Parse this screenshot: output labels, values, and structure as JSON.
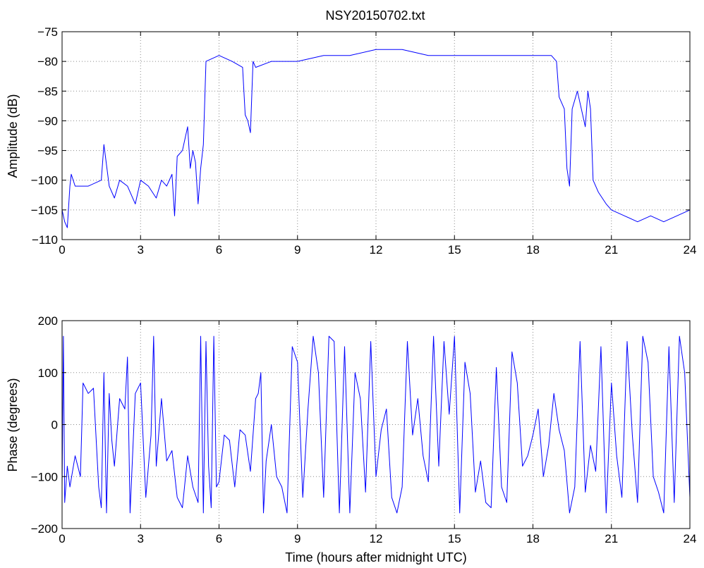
{
  "title": "NSY20150702.txt",
  "colors": {
    "series": "#0000ff",
    "grid": "#8a8a8a",
    "axis": "#000000"
  },
  "chart_data": [
    {
      "type": "line",
      "title": "NSY20150702.txt",
      "xlabel": "",
      "ylabel": "Amplitude (dB)",
      "xlim": [
        0,
        24
      ],
      "ylim": [
        -110,
        -75
      ],
      "xticks": [
        0,
        3,
        6,
        9,
        12,
        15,
        18,
        21,
        24
      ],
      "yticks": [
        -110,
        -105,
        -100,
        -95,
        -90,
        -85,
        -80,
        -75
      ],
      "xtick_labels": [
        "0",
        "3",
        "6",
        "9",
        "12",
        "15",
        "18",
        "21",
        "24"
      ],
      "ytick_labels": [
        "−110",
        "−105",
        "−100",
        "−95",
        "−90",
        "−85",
        "−80",
        "−75"
      ],
      "grid": true,
      "x": [
        0,
        0.1,
        0.2,
        0.3,
        0.35,
        0.5,
        1.0,
        1.5,
        1.6,
        1.8,
        2.0,
        2.2,
        2.5,
        2.8,
        3.0,
        3.3,
        3.6,
        3.8,
        4.0,
        4.2,
        4.3,
        4.4,
        4.6,
        4.8,
        4.9,
        5.0,
        5.1,
        5.2,
        5.3,
        5.4,
        5.5,
        6.0,
        6.5,
        6.9,
        7.0,
        7.1,
        7.2,
        7.3,
        7.4,
        8.0,
        9.0,
        10.0,
        11.0,
        12.0,
        13.0,
        14.0,
        15.0,
        16.0,
        17.0,
        18.0,
        18.7,
        18.9,
        19.0,
        19.2,
        19.3,
        19.4,
        19.5,
        19.7,
        19.9,
        20.0,
        20.1,
        20.2,
        20.3,
        20.5,
        20.8,
        21.0,
        21.5,
        22.0,
        22.5,
        23.0,
        23.5,
        24.0
      ],
      "y": [
        -105,
        -107,
        -108,
        -101,
        -99,
        -101,
        -101,
        -100,
        -94,
        -101,
        -103,
        -100,
        -101,
        -104,
        -100,
        -101,
        -103,
        -100,
        -101,
        -99,
        -106,
        -96,
        -95,
        -91,
        -98,
        -95,
        -97,
        -104,
        -98,
        -94,
        -80,
        -79,
        -80,
        -81,
        -89,
        -90,
        -92,
        -80,
        -81,
        -80,
        -80,
        -79,
        -79,
        -78,
        -78,
        -79,
        -79,
        -79,
        -79,
        -79,
        -79,
        -80,
        -86,
        -88,
        -98,
        -101,
        -88,
        -85,
        -89,
        -91,
        -85,
        -88,
        -100,
        -102,
        -104,
        -105,
        -106,
        -107,
        -106,
        -107,
        -106,
        -105
      ]
    },
    {
      "type": "line",
      "title": "",
      "xlabel": "Time (hours after midnight UTC)",
      "ylabel": "Phase (degrees)",
      "xlim": [
        0,
        24
      ],
      "ylim": [
        -200,
        200
      ],
      "xticks": [
        0,
        3,
        6,
        9,
        12,
        15,
        18,
        21,
        24
      ],
      "yticks": [
        -200,
        -100,
        0,
        100,
        200
      ],
      "xtick_labels": [
        "0",
        "3",
        "6",
        "9",
        "12",
        "15",
        "18",
        "21",
        "24"
      ],
      "ytick_labels": [
        "−200",
        "−100",
        "0",
        "100",
        "200"
      ],
      "grid": true,
      "x": [
        0,
        0.05,
        0.1,
        0.2,
        0.3,
        0.5,
        0.7,
        0.8,
        1.0,
        1.2,
        1.4,
        1.5,
        1.6,
        1.7,
        1.8,
        1.9,
        2.0,
        2.2,
        2.4,
        2.5,
        2.6,
        2.8,
        3.0,
        3.2,
        3.4,
        3.5,
        3.6,
        3.8,
        4.0,
        4.2,
        4.4,
        4.6,
        4.8,
        5.0,
        5.2,
        5.3,
        5.4,
        5.5,
        5.6,
        5.7,
        5.8,
        5.9,
        6.0,
        6.2,
        6.4,
        6.6,
        6.8,
        7.0,
        7.2,
        7.4,
        7.5,
        7.6,
        7.7,
        7.8,
        8.0,
        8.2,
        8.4,
        8.6,
        8.8,
        9.0,
        9.2,
        9.4,
        9.6,
        9.8,
        10.0,
        10.2,
        10.4,
        10.6,
        10.8,
        11.0,
        11.2,
        11.4,
        11.6,
        11.8,
        12.0,
        12.2,
        12.4,
        12.6,
        12.8,
        13.0,
        13.2,
        13.4,
        13.6,
        13.8,
        14.0,
        14.2,
        14.4,
        14.6,
        14.8,
        15.0,
        15.2,
        15.4,
        15.6,
        15.8,
        16.0,
        16.2,
        16.4,
        16.6,
        16.8,
        17.0,
        17.2,
        17.4,
        17.6,
        17.8,
        18.0,
        18.2,
        18.4,
        18.6,
        18.8,
        19.0,
        19.2,
        19.4,
        19.6,
        19.8,
        20.0,
        20.2,
        20.4,
        20.6,
        20.8,
        21.0,
        21.2,
        21.4,
        21.6,
        21.8,
        22.0,
        22.2,
        22.4,
        22.6,
        22.8,
        23.0,
        23.2,
        23.4,
        23.6,
        23.8,
        24.0
      ],
      "y": [
        -120,
        170,
        -150,
        -80,
        -120,
        -60,
        -100,
        80,
        60,
        70,
        -120,
        -160,
        100,
        -170,
        60,
        -30,
        -80,
        50,
        30,
        130,
        -170,
        60,
        80,
        -140,
        -20,
        170,
        -80,
        50,
        -70,
        -50,
        -140,
        -160,
        -60,
        -120,
        -150,
        170,
        -170,
        160,
        -80,
        -160,
        170,
        -120,
        -110,
        -20,
        -30,
        -120,
        -10,
        -20,
        -90,
        50,
        60,
        100,
        -170,
        -70,
        0,
        -100,
        -120,
        -170,
        150,
        120,
        -140,
        30,
        170,
        100,
        -140,
        170,
        160,
        -170,
        150,
        -170,
        100,
        50,
        -130,
        160,
        -100,
        -10,
        30,
        -140,
        -170,
        -120,
        160,
        -20,
        50,
        -60,
        -110,
        170,
        -80,
        160,
        20,
        170,
        -170,
        120,
        60,
        -130,
        -70,
        -150,
        -160,
        110,
        -120,
        -150,
        140,
        80,
        -80,
        -60,
        -20,
        30,
        -100,
        -40,
        60,
        -10,
        -50,
        -170,
        -120,
        160,
        -130,
        -40,
        -90,
        150,
        -170,
        80,
        -60,
        -140,
        160,
        -20,
        -150,
        170,
        120,
        -100,
        -130,
        -170,
        150,
        -150,
        170,
        100,
        -140
      ]
    }
  ]
}
